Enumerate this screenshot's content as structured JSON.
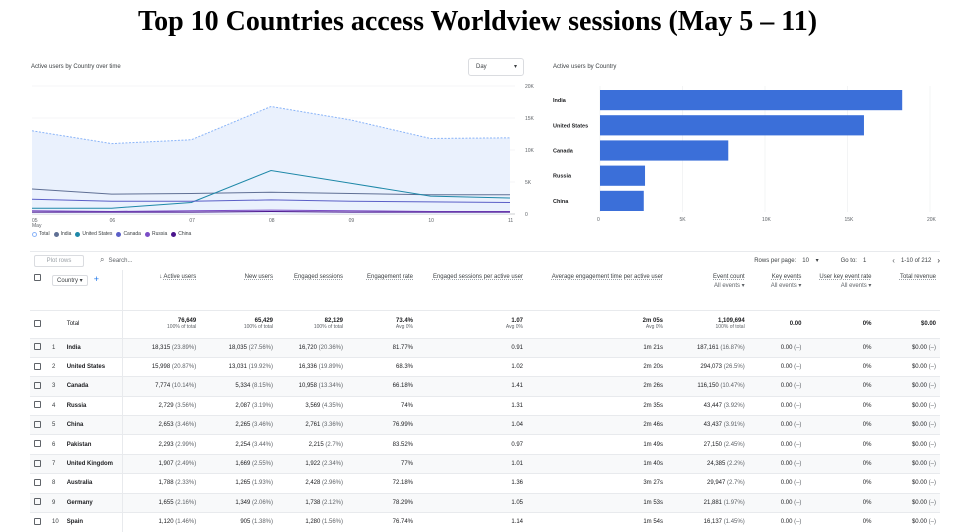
{
  "title": "Top 10 Countries access Worldview sessions (May 5 – 11)",
  "line_card": {
    "label": "Active users by Country over time",
    "select_value": "Day",
    "x_ticks": [
      "05",
      "06",
      "07",
      "08",
      "09",
      "10",
      "11"
    ],
    "x_sub": "May",
    "y_ticks": [
      "0",
      "5K",
      "10K",
      "15K",
      "20K"
    ],
    "legend": [
      "Total",
      "India",
      "United States",
      "Canada",
      "Russia",
      "China"
    ]
  },
  "bar_card": {
    "label": "Active users by Country",
    "x_ticks": [
      "0",
      "5K",
      "10K",
      "15K",
      "20K"
    ]
  },
  "chart_data": [
    {
      "type": "line",
      "x": [
        "05",
        "06",
        "07",
        "08",
        "09",
        "10",
        "11"
      ],
      "ylim": [
        0,
        20000
      ],
      "series": [
        {
          "name": "Total",
          "values": [
            13000,
            11000,
            11600,
            16800,
            14700,
            11800,
            11900
          ],
          "color": "#8ab4f8"
        },
        {
          "name": "India",
          "values": [
            3900,
            3100,
            3200,
            3400,
            3200,
            3000,
            3000
          ],
          "color": "#5f6f94"
        },
        {
          "name": "United States",
          "values": [
            900,
            900,
            1800,
            6800,
            4800,
            2800,
            2500
          ],
          "color": "#1e88a8"
        },
        {
          "name": "Canada",
          "values": [
            2300,
            2000,
            2000,
            2200,
            2000,
            1900,
            1800
          ],
          "color": "#5b5fc7"
        },
        {
          "name": "Russia",
          "values": [
            500,
            400,
            500,
            600,
            500,
            400,
            400
          ],
          "color": "#7b4dc6"
        },
        {
          "name": "China",
          "values": [
            300,
            300,
            300,
            400,
            300,
            300,
            300
          ],
          "color": "#4a148c"
        }
      ],
      "colors": {
        "Total": "#8ab4f8",
        "India": "#5f6f94",
        "United States": "#1e88a8",
        "Canada": "#5b5fc7",
        "Russia": "#7b4dc6",
        "China": "#4a148c"
      }
    },
    {
      "type": "bar",
      "orientation": "horizontal",
      "categories": [
        "India",
        "United States",
        "Canada",
        "Russia",
        "China"
      ],
      "values": [
        18315,
        15998,
        7774,
        2729,
        2653
      ],
      "xlim": [
        0,
        20000
      ],
      "color": "#3b6fd9"
    }
  ],
  "controls": {
    "plot_rows": "Plot rows",
    "search_placeholder": "Search...",
    "rows_per_page_label": "Rows per page:",
    "rows_per_page": "10",
    "goto_label": "Go to:",
    "goto_value": "1",
    "range": "1-10 of 212"
  },
  "table": {
    "country_header": "Country",
    "headers": {
      "active_users": "Active users",
      "new_users": "New users",
      "engaged_sessions": "Engaged sessions",
      "engagement_rate": "Engagement rate",
      "engaged_per_user": "Engaged sessions per active user",
      "avg_time": "Average engagement time per active user",
      "event_count": "Event count",
      "event_count_sub": "All events",
      "key_events": "Key events",
      "key_events_sub": "All events",
      "user_key_rate": "User key event rate",
      "user_key_rate_sub": "All events",
      "revenue": "Total revenue"
    },
    "total": {
      "label": "Total",
      "active_users": "76,649",
      "active_users_sub": "100% of total",
      "new_users": "65,429",
      "new_users_sub": "100% of total",
      "engaged_sessions": "82,129",
      "engaged_sessions_sub": "100% of total",
      "engagement_rate": "73.4%",
      "engagement_rate_sub": "Avg 0%",
      "engaged_per_user": "1.07",
      "engaged_per_user_sub": "Avg 0%",
      "avg_time": "2m 05s",
      "avg_time_sub": "Avg 0%",
      "event_count": "1,109,694",
      "event_count_sub": "100% of total",
      "key_events": "0.00",
      "user_key_rate": "0%",
      "revenue": "$0.00"
    },
    "rows": [
      {
        "n": "1",
        "country": "India",
        "au": "18,315",
        "aup": "(23.89%)",
        "nu": "18,035",
        "nup": "(27.56%)",
        "es": "16,720",
        "esp": "(20.36%)",
        "er": "81.77%",
        "epu": "0.91",
        "time": "1m 21s",
        "ec": "187,161",
        "ecp": "(16.87%)",
        "ke": "0.00",
        "kep": "(–)",
        "ukr": "0%",
        "rev": "$0.00",
        "revp": "(–)"
      },
      {
        "n": "2",
        "country": "United States",
        "au": "15,998",
        "aup": "(20.87%)",
        "nu": "13,031",
        "nup": "(19.92%)",
        "es": "16,336",
        "esp": "(19.89%)",
        "er": "68.3%",
        "epu": "1.02",
        "time": "2m 20s",
        "ec": "294,073",
        "ecp": "(26.5%)",
        "ke": "0.00",
        "kep": "(–)",
        "ukr": "0%",
        "rev": "$0.00",
        "revp": "(–)"
      },
      {
        "n": "3",
        "country": "Canada",
        "au": "7,774",
        "aup": "(10.14%)",
        "nu": "5,334",
        "nup": "(8.15%)",
        "es": "10,958",
        "esp": "(13.34%)",
        "er": "66.18%",
        "epu": "1.41",
        "time": "2m 26s",
        "ec": "116,150",
        "ecp": "(10.47%)",
        "ke": "0.00",
        "kep": "(–)",
        "ukr": "0%",
        "rev": "$0.00",
        "revp": "(–)"
      },
      {
        "n": "4",
        "country": "Russia",
        "au": "2,729",
        "aup": "(3.56%)",
        "nu": "2,087",
        "nup": "(3.19%)",
        "es": "3,569",
        "esp": "(4.35%)",
        "er": "74%",
        "epu": "1.31",
        "time": "2m 35s",
        "ec": "43,447",
        "ecp": "(3.92%)",
        "ke": "0.00",
        "kep": "(–)",
        "ukr": "0%",
        "rev": "$0.00",
        "revp": "(–)"
      },
      {
        "n": "5",
        "country": "China",
        "au": "2,653",
        "aup": "(3.46%)",
        "nu": "2,265",
        "nup": "(3.46%)",
        "es": "2,761",
        "esp": "(3.36%)",
        "er": "76.99%",
        "epu": "1.04",
        "time": "2m 46s",
        "ec": "43,437",
        "ecp": "(3.91%)",
        "ke": "0.00",
        "kep": "(–)",
        "ukr": "0%",
        "rev": "$0.00",
        "revp": "(–)"
      },
      {
        "n": "6",
        "country": "Pakistan",
        "au": "2,293",
        "aup": "(2.99%)",
        "nu": "2,254",
        "nup": "(3.44%)",
        "es": "2,215",
        "esp": "(2.7%)",
        "er": "83.52%",
        "epu": "0.97",
        "time": "1m 49s",
        "ec": "27,150",
        "ecp": "(2.45%)",
        "ke": "0.00",
        "kep": "(–)",
        "ukr": "0%",
        "rev": "$0.00",
        "revp": "(–)"
      },
      {
        "n": "7",
        "country": "United Kingdom",
        "au": "1,907",
        "aup": "(2.49%)",
        "nu": "1,669",
        "nup": "(2.55%)",
        "es": "1,922",
        "esp": "(2.34%)",
        "er": "77%",
        "epu": "1.01",
        "time": "1m 40s",
        "ec": "24,385",
        "ecp": "(2.2%)",
        "ke": "0.00",
        "kep": "(–)",
        "ukr": "0%",
        "rev": "$0.00",
        "revp": "(–)"
      },
      {
        "n": "8",
        "country": "Australia",
        "au": "1,788",
        "aup": "(2.33%)",
        "nu": "1,265",
        "nup": "(1.93%)",
        "es": "2,428",
        "esp": "(2.96%)",
        "er": "72.18%",
        "epu": "1.36",
        "time": "3m 27s",
        "ec": "29,947",
        "ecp": "(2.7%)",
        "ke": "0.00",
        "kep": "(–)",
        "ukr": "0%",
        "rev": "$0.00",
        "revp": "(–)"
      },
      {
        "n": "9",
        "country": "Germany",
        "au": "1,655",
        "aup": "(2.16%)",
        "nu": "1,349",
        "nup": "(2.06%)",
        "es": "1,738",
        "esp": "(2.12%)",
        "er": "78.29%",
        "epu": "1.05",
        "time": "1m 53s",
        "ec": "21,881",
        "ecp": "(1.97%)",
        "ke": "0.00",
        "kep": "(–)",
        "ukr": "0%",
        "rev": "$0.00",
        "revp": "(–)"
      },
      {
        "n": "10",
        "country": "Spain",
        "au": "1,120",
        "aup": "(1.46%)",
        "nu": "905",
        "nup": "(1.38%)",
        "es": "1,280",
        "esp": "(1.56%)",
        "er": "76.74%",
        "epu": "1.14",
        "time": "1m 54s",
        "ec": "16,137",
        "ecp": "(1.45%)",
        "ke": "0.00",
        "kep": "(–)",
        "ukr": "0%",
        "rev": "$0.00",
        "revp": "(–)"
      }
    ]
  }
}
